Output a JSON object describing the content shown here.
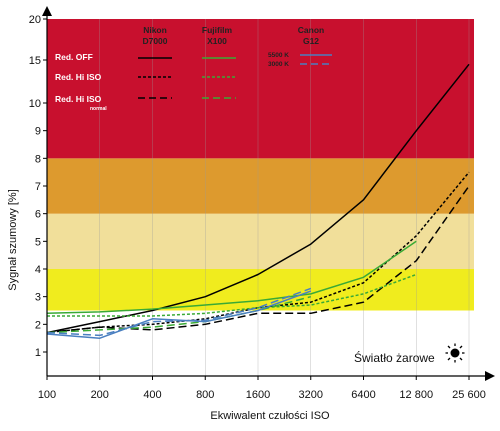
{
  "chart_data": {
    "type": "line",
    "xlabel": "Ekwiwalent czułości ISO",
    "ylabel": "Sygnał szumowy [%]",
    "x_tick_labels": [
      "100",
      "200",
      "400",
      "800",
      "1600",
      "3200",
      "6400",
      "12 800",
      "25 600"
    ],
    "y_tick_labels": [
      "1",
      "2",
      "3",
      "4",
      "5",
      "6",
      "7",
      "8",
      "9",
      "10",
      "15",
      "20"
    ],
    "ylim": [
      1,
      20
    ],
    "y_scale": "piecewise",
    "bands": [
      {
        "from": 1,
        "to": 2.5,
        "color": "#ffffff"
      },
      {
        "from": 2.5,
        "to": 4,
        "color": "#f0ec1e"
      },
      {
        "from": 4,
        "to": 6,
        "color": "#f1df9a"
      },
      {
        "from": 6,
        "to": 8,
        "color": "#dd9a2e"
      },
      {
        "from": 8,
        "to": 20,
        "color": "#c8102e"
      }
    ],
    "legend": {
      "camera_headers": [
        "Nikon\nD7000",
        "Fujifilm\nX100",
        "Canon\nG12"
      ],
      "row_labels": [
        "Red. OFF",
        "Red. Hi ISO",
        "Red. Hi ISO"
      ],
      "row_sub_label": "normal",
      "canon_labels": [
        "5500 K",
        "3000 K"
      ]
    },
    "annotation": "Światło żarowe",
    "series": [
      {
        "camera": "Nikon D7000",
        "mode": "Red. OFF",
        "color": "#000000",
        "dash": "solid",
        "x": [
          100,
          200,
          400,
          800,
          1600,
          3200,
          6400,
          12800,
          25600
        ],
        "y": [
          1.7,
          2.1,
          2.5,
          3.0,
          3.8,
          4.9,
          6.5,
          9.0,
          14.5
        ]
      },
      {
        "camera": "Nikon D7000",
        "mode": "Red. Hi ISO",
        "color": "#000000",
        "dash": "dotted",
        "x": [
          100,
          200,
          400,
          800,
          1600,
          3200,
          6400,
          12800,
          25600
        ],
        "y": [
          1.7,
          1.9,
          2.0,
          2.2,
          2.6,
          2.8,
          3.5,
          5.2,
          7.5
        ]
      },
      {
        "camera": "Nikon D7000",
        "mode": "Red. Hi ISO normal",
        "color": "#000000",
        "dash": "dashed",
        "x": [
          100,
          200,
          400,
          800,
          1600,
          3200,
          6400,
          12800,
          25600
        ],
        "y": [
          1.7,
          1.9,
          1.8,
          2.0,
          2.4,
          2.4,
          2.8,
          4.3,
          7.0
        ]
      },
      {
        "camera": "Fujifilm X100",
        "mode": "Red. OFF",
        "color": "#3aaa35",
        "dash": "solid",
        "x": [
          100,
          200,
          400,
          800,
          1600,
          3200,
          6400,
          12800
        ],
        "y": [
          2.4,
          2.45,
          2.55,
          2.7,
          2.85,
          3.1,
          3.7,
          5.0
        ]
      },
      {
        "camera": "Fujifilm X100",
        "mode": "Red. Hi ISO",
        "color": "#3aaa35",
        "dash": "dotted",
        "x": [
          100,
          200,
          400,
          800,
          1600,
          3200,
          6400,
          12800
        ],
        "y": [
          2.3,
          2.3,
          2.3,
          2.4,
          2.6,
          2.7,
          3.1,
          3.8
        ]
      },
      {
        "camera": "Fujifilm X100",
        "mode": "Red. Hi ISO normal",
        "color": "#3aaa35",
        "dash": "dashed",
        "x": [
          100,
          200,
          400,
          800,
          1600,
          3200
        ],
        "y": [
          1.7,
          1.8,
          1.9,
          2.1,
          2.5,
          3.0
        ]
      },
      {
        "camera": "Canon G12",
        "mode": "5500 K",
        "color": "#4a7fc0",
        "dash": "solid",
        "x": [
          100,
          200,
          400,
          800,
          1600,
          3200
        ],
        "y": [
          1.65,
          1.5,
          2.2,
          2.1,
          2.5,
          3.2
        ]
      },
      {
        "camera": "Canon G12",
        "mode": "3000 K",
        "color": "#4a7fc0",
        "dash": "dashed",
        "x": [
          100,
          200,
          400,
          800,
          1600,
          3200
        ],
        "y": [
          1.7,
          1.6,
          2.1,
          2.15,
          2.6,
          3.3
        ]
      }
    ]
  }
}
